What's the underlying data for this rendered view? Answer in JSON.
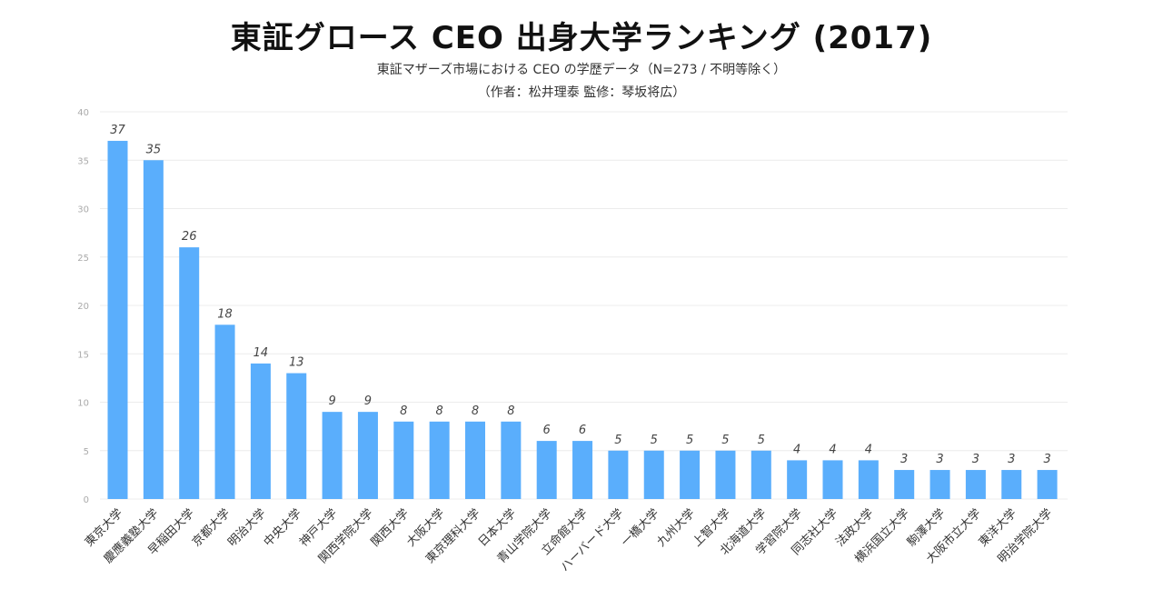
{
  "title": "東証グロース CEO 出身大学ランキング (2017)",
  "subtitle": "東証マザーズ市場における CEO の学歴データ（N=273 / 不明等除く）",
  "credit": "（作者：松井理泰 監修：琴坂将広）",
  "colors": {
    "bar": "#5aaefc",
    "grid": "#ececec",
    "tick": "#aaaaaa",
    "value": "#444444",
    "label": "#333333"
  },
  "chart_data": {
    "type": "bar",
    "title": "東証グロース CEO 出身大学ランキング (2017)",
    "xlabel": "",
    "ylabel": "",
    "ylim": [
      0,
      40
    ],
    "yticks": [
      0,
      5,
      10,
      15,
      20,
      25,
      30,
      35,
      40
    ],
    "grid": true,
    "categories": [
      "東京大学",
      "慶應義塾大学",
      "早稲田大学",
      "京都大学",
      "明治大学",
      "中央大学",
      "神戸大学",
      "関西学院大学",
      "関西大学",
      "大阪大学",
      "東京理科大学",
      "日本大学",
      "青山学院大学",
      "立命館大学",
      "ハーバード大学",
      "一橋大学",
      "九州大学",
      "上智大学",
      "北海道大学",
      "学習院大学",
      "同志社大学",
      "法政大学",
      "横浜国立大学",
      "駒澤大学",
      "大阪市立大学",
      "東洋大学",
      "明治学院大学"
    ],
    "values": [
      37,
      35,
      26,
      18,
      14,
      13,
      9,
      9,
      8,
      8,
      8,
      8,
      6,
      6,
      5,
      5,
      5,
      5,
      5,
      4,
      4,
      4,
      3,
      3,
      3,
      3,
      3
    ]
  }
}
